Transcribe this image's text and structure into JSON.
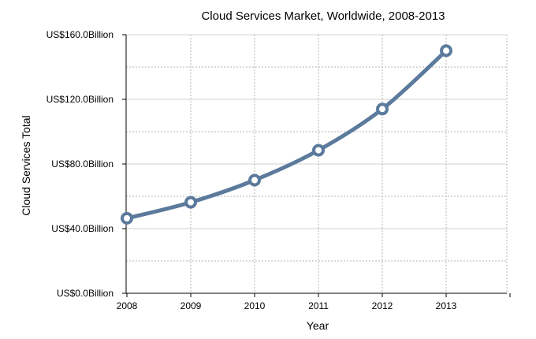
{
  "chart_data": {
    "type": "line",
    "title": "Cloud Services Market, Worldwide, 2008-2013",
    "xlabel": "Year",
    "ylabel": "Cloud Services Total",
    "x": [
      "2008",
      "2009",
      "2010",
      "2011",
      "2012",
      "2013"
    ],
    "y_tick_labels": [
      "US$0.0Billion",
      "US$40.0Billion",
      "US$80.0Billion",
      "US$120.0Billion",
      "US$160.0Billion"
    ],
    "y_ticks": [
      0,
      40,
      80,
      120,
      160
    ],
    "ylim": [
      0,
      160
    ],
    "grid": true,
    "series": [
      {
        "values": [
          46.4,
          56.3,
          70.0,
          88.5,
          114.0,
          150.1
        ],
        "color": "#5b7a9c"
      }
    ]
  }
}
